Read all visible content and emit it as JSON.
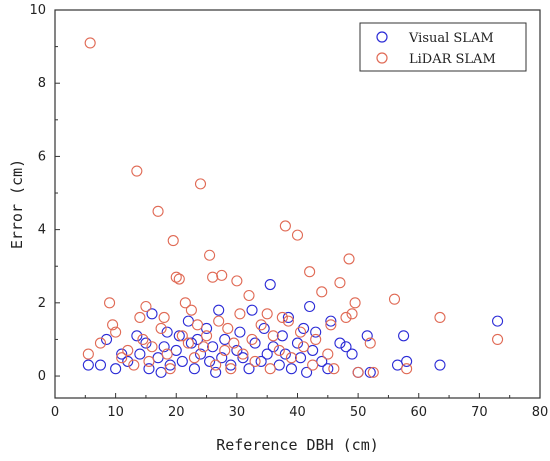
{
  "chart_data": {
    "type": "scatter",
    "xlabel": "Reference DBH (cm)",
    "ylabel": "Error (cm)",
    "xlim": [
      0,
      80
    ],
    "ylim": [
      -0.6,
      10
    ],
    "xticks": [
      0,
      10,
      20,
      30,
      40,
      50,
      60,
      70,
      80
    ],
    "yticks": [
      0,
      2,
      4,
      6,
      8,
      10
    ],
    "grid": false,
    "legend_position": "top-right",
    "series": [
      {
        "name": "Visual SLAM",
        "color": "#2b2bd6",
        "points": [
          [
            5.5,
            0.3
          ],
          [
            7.5,
            0.3
          ],
          [
            8.5,
            1.0
          ],
          [
            10.0,
            0.2
          ],
          [
            11.0,
            0.6
          ],
          [
            12.0,
            0.4
          ],
          [
            13.5,
            1.1
          ],
          [
            14.0,
            0.6
          ],
          [
            15.0,
            0.9
          ],
          [
            15.5,
            0.2
          ],
          [
            16.0,
            1.7
          ],
          [
            17.0,
            0.5
          ],
          [
            17.5,
            0.1
          ],
          [
            18.0,
            0.8
          ],
          [
            18.5,
            1.2
          ],
          [
            19.0,
            0.3
          ],
          [
            20.0,
            0.7
          ],
          [
            20.5,
            1.1
          ],
          [
            21.0,
            0.4
          ],
          [
            22.0,
            1.5
          ],
          [
            22.5,
            0.9
          ],
          [
            23.0,
            0.2
          ],
          [
            23.5,
            1.0
          ],
          [
            24.0,
            0.6
          ],
          [
            25.0,
            1.3
          ],
          [
            25.5,
            0.4
          ],
          [
            26.0,
            0.8
          ],
          [
            26.5,
            0.1
          ],
          [
            27.0,
            1.8
          ],
          [
            27.5,
            0.5
          ],
          [
            28.0,
            1.0
          ],
          [
            29.0,
            0.3
          ],
          [
            30.0,
            0.7
          ],
          [
            30.5,
            1.2
          ],
          [
            31.0,
            0.5
          ],
          [
            32.0,
            0.2
          ],
          [
            32.5,
            1.8
          ],
          [
            33.0,
            0.9
          ],
          [
            34.0,
            0.4
          ],
          [
            34.5,
            1.3
          ],
          [
            35.0,
            0.6
          ],
          [
            35.5,
            2.5
          ],
          [
            36.0,
            0.8
          ],
          [
            37.0,
            0.3
          ],
          [
            37.5,
            1.1
          ],
          [
            38.0,
            0.6
          ],
          [
            38.5,
            1.6
          ],
          [
            39.0,
            0.2
          ],
          [
            40.0,
            0.9
          ],
          [
            40.5,
            0.5
          ],
          [
            41.0,
            1.3
          ],
          [
            41.5,
            0.1
          ],
          [
            42.0,
            1.9
          ],
          [
            42.5,
            0.7
          ],
          [
            43.0,
            1.2
          ],
          [
            44.0,
            0.4
          ],
          [
            45.0,
            0.2
          ],
          [
            45.5,
            1.5
          ],
          [
            47.0,
            0.9
          ],
          [
            48.0,
            0.8
          ],
          [
            49.0,
            0.6
          ],
          [
            50.0,
            0.1
          ],
          [
            51.5,
            1.1
          ],
          [
            52.0,
            0.1
          ],
          [
            56.5,
            0.3
          ],
          [
            57.5,
            1.1
          ],
          [
            58.0,
            0.4
          ],
          [
            63.5,
            0.3
          ],
          [
            73.0,
            1.5
          ]
        ]
      },
      {
        "name": "LiDAR SLAM",
        "color": "#e06a55",
        "points": [
          [
            5.8,
            9.1
          ],
          [
            5.5,
            0.6
          ],
          [
            7.5,
            0.9
          ],
          [
            9.0,
            2.0
          ],
          [
            9.5,
            1.4
          ],
          [
            10.0,
            1.2
          ],
          [
            11.0,
            0.5
          ],
          [
            12.0,
            0.7
          ],
          [
            13.0,
            0.3
          ],
          [
            13.5,
            5.6
          ],
          [
            14.0,
            1.6
          ],
          [
            14.5,
            1.0
          ],
          [
            15.0,
            1.9
          ],
          [
            15.5,
            0.4
          ],
          [
            16.0,
            0.8
          ],
          [
            17.0,
            4.5
          ],
          [
            17.5,
            1.3
          ],
          [
            18.0,
            1.6
          ],
          [
            18.5,
            0.6
          ],
          [
            19.0,
            0.2
          ],
          [
            19.5,
            3.7
          ],
          [
            20.0,
            2.7
          ],
          [
            20.5,
            2.65
          ],
          [
            21.0,
            1.1
          ],
          [
            21.5,
            2.0
          ],
          [
            22.0,
            0.9
          ],
          [
            22.5,
            1.8
          ],
          [
            23.0,
            0.5
          ],
          [
            23.5,
            1.4
          ],
          [
            24.0,
            5.25
          ],
          [
            24.5,
            0.8
          ],
          [
            25.0,
            1.1
          ],
          [
            25.5,
            3.3
          ],
          [
            26.0,
            2.7
          ],
          [
            26.5,
            0.3
          ],
          [
            27.0,
            1.5
          ],
          [
            27.5,
            2.75
          ],
          [
            28.0,
            0.7
          ],
          [
            28.5,
            1.3
          ],
          [
            29.0,
            0.2
          ],
          [
            29.5,
            0.9
          ],
          [
            30.0,
            2.6
          ],
          [
            30.5,
            1.7
          ],
          [
            31.0,
            0.6
          ],
          [
            32.0,
            2.2
          ],
          [
            32.5,
            1.0
          ],
          [
            33.0,
            0.4
          ],
          [
            34.0,
            1.4
          ],
          [
            35.0,
            1.7
          ],
          [
            35.5,
            0.2
          ],
          [
            36.0,
            1.1
          ],
          [
            37.0,
            0.7
          ],
          [
            37.5,
            1.6
          ],
          [
            38.0,
            4.1
          ],
          [
            38.5,
            1.5
          ],
          [
            39.0,
            0.5
          ],
          [
            40.0,
            3.85
          ],
          [
            40.5,
            1.2
          ],
          [
            41.0,
            0.8
          ],
          [
            42.0,
            2.85
          ],
          [
            42.5,
            0.3
          ],
          [
            43.0,
            1.0
          ],
          [
            44.0,
            2.3
          ],
          [
            45.0,
            0.6
          ],
          [
            45.5,
            1.4
          ],
          [
            46.0,
            0.2
          ],
          [
            47.0,
            2.55
          ],
          [
            48.0,
            1.6
          ],
          [
            48.5,
            3.2
          ],
          [
            49.0,
            1.7
          ],
          [
            49.5,
            2.0
          ],
          [
            50.0,
            0.1
          ],
          [
            52.0,
            0.9
          ],
          [
            52.5,
            0.1
          ],
          [
            56.0,
            2.1
          ],
          [
            58.0,
            0.2
          ],
          [
            63.5,
            1.6
          ],
          [
            73.0,
            1.0
          ]
        ]
      }
    ]
  }
}
